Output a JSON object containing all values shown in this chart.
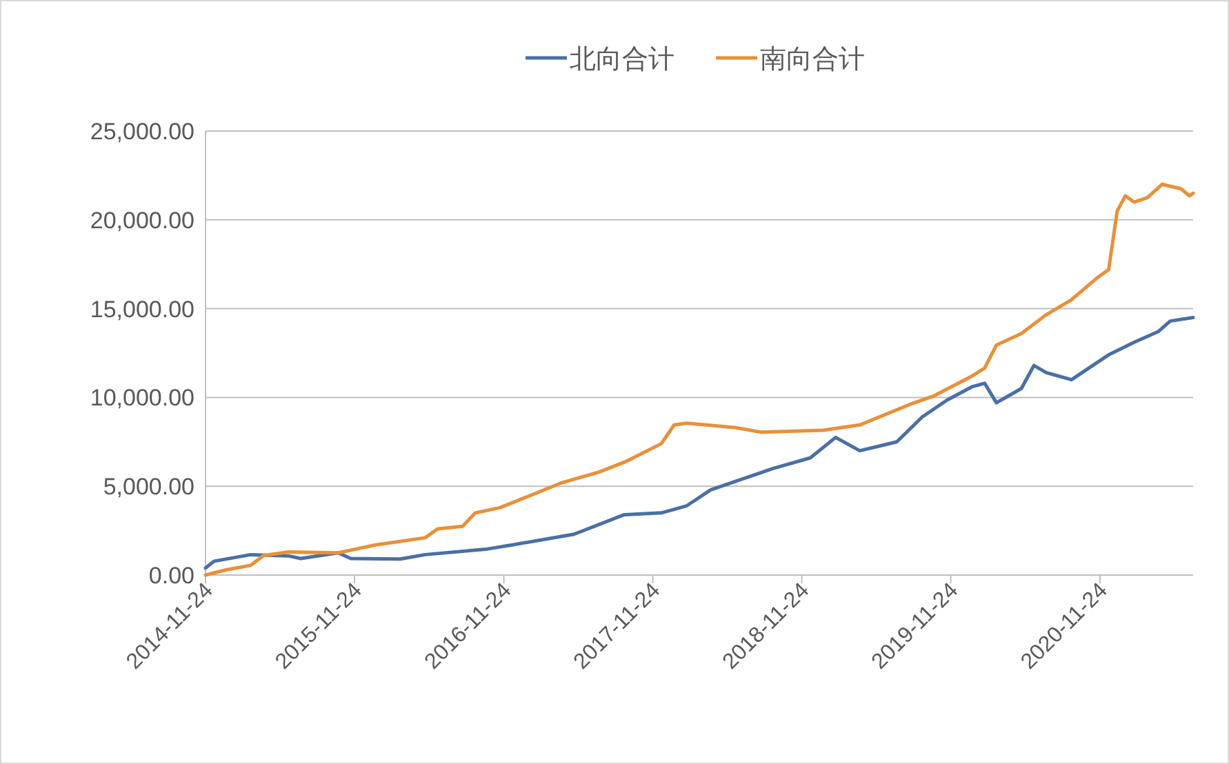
{
  "chart_data": {
    "type": "line",
    "legend": "top",
    "grid": "y",
    "marker": "none",
    "line_style": "solid",
    "xlim": [
      "2014-11-24",
      "2021-07-10"
    ],
    "xticks": [
      "2014-11-24",
      "2015-11-24",
      "2016-11-24",
      "2017-11-24",
      "2018-11-24",
      "2019-11-24",
      "2020-11-24"
    ],
    "ylim": [
      0,
      25000
    ],
    "yticks": [
      {
        "value": 0,
        "label": "0.00"
      },
      {
        "value": 5000,
        "label": "5,000.00"
      },
      {
        "value": 10000,
        "label": "10,000.00"
      },
      {
        "value": 15000,
        "label": "15,000.00"
      },
      {
        "value": 20000,
        "label": "20,000.00"
      },
      {
        "value": 25000,
        "label": "25,000.00"
      }
    ],
    "series": [
      {
        "name": "北向合计",
        "color": "#4a6fa5",
        "x": [
          "2014-11-24",
          "2014-12-15",
          "2015-03-15",
          "2015-06-15",
          "2015-07-15",
          "2015-10-15",
          "2015-11-15",
          "2016-03-15",
          "2016-05-15",
          "2016-10-15",
          "2016-12-15",
          "2017-05-15",
          "2017-09-15",
          "2017-12-15",
          "2018-02-15",
          "2018-04-15",
          "2018-09-15",
          "2018-12-15",
          "2019-02-15",
          "2019-04-15",
          "2019-07-15",
          "2019-09-15",
          "2019-11-15",
          "2020-01-15",
          "2020-02-15",
          "2020-03-15",
          "2020-05-15",
          "2020-06-15",
          "2020-07-15",
          "2020-09-15",
          "2020-12-15",
          "2021-02-15",
          "2021-04-15",
          "2021-05-15",
          "2021-07-10"
        ],
        "values": [
          400,
          780,
          1150,
          1080,
          930,
          1250,
          930,
          900,
          1150,
          1470,
          1700,
          2300,
          3400,
          3500,
          3900,
          4800,
          6000,
          6600,
          7750,
          7000,
          7500,
          8900,
          9850,
          10600,
          10800,
          9700,
          10500,
          11800,
          11400,
          11000,
          12400,
          13100,
          13700,
          14300,
          14500
        ]
      },
      {
        "name": "南向合计",
        "color": "#e8903a",
        "x": [
          "2014-11-24",
          "2015-01-15",
          "2015-03-15",
          "2015-04-15",
          "2015-06-15",
          "2015-10-15",
          "2016-01-15",
          "2016-05-15",
          "2016-06-15",
          "2016-08-15",
          "2016-09-15",
          "2016-11-15",
          "2017-02-15",
          "2017-04-15",
          "2017-07-15",
          "2017-09-15",
          "2017-12-15",
          "2018-01-15",
          "2018-02-15",
          "2018-06-15",
          "2018-08-15",
          "2019-01-15",
          "2019-04-15",
          "2019-08-15",
          "2019-10-15",
          "2020-01-15",
          "2020-02-15",
          "2020-03-15",
          "2020-05-15",
          "2020-07-15",
          "2020-09-15",
          "2020-11-15",
          "2020-12-15",
          "2021-01-05",
          "2021-01-25",
          "2021-02-15",
          "2021-03-20",
          "2021-04-25",
          "2021-06-10",
          "2021-07-01",
          "2021-07-10"
        ],
        "values": [
          0,
          300,
          550,
          1100,
          1300,
          1250,
          1700,
          2100,
          2600,
          2750,
          3500,
          3800,
          4650,
          5200,
          5800,
          6350,
          7400,
          8450,
          8550,
          8300,
          8050,
          8150,
          8450,
          9600,
          10100,
          11200,
          11650,
          12950,
          13600,
          14650,
          15500,
          16700,
          17200,
          20500,
          21350,
          21000,
          21250,
          22000,
          21750,
          21350,
          21500
        ]
      }
    ]
  }
}
